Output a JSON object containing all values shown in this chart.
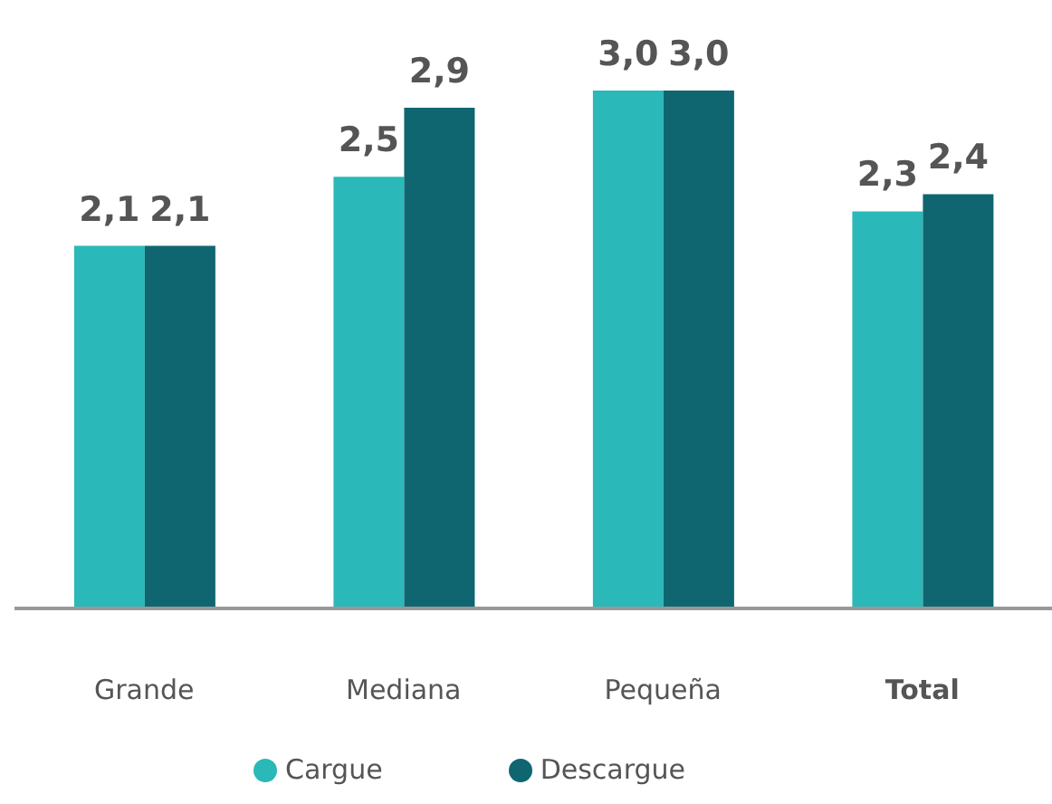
{
  "chart_data": {
    "type": "bar",
    "categories": [
      "Grande",
      "Mediana",
      "Pequeña",
      "Total"
    ],
    "series": [
      {
        "name": "Cargue",
        "color": "#2ab8b8",
        "values": [
          2.1,
          2.5,
          3.0,
          2.3
        ],
        "value_labels": [
          "2,1",
          "2,5",
          "3,0",
          "2,3"
        ]
      },
      {
        "name": "Descargue",
        "color": "#0f6670",
        "values": [
          2.1,
          2.9,
          3.0,
          2.4
        ],
        "value_labels": [
          "2,1",
          "2,9",
          "3,0",
          "2,4"
        ]
      }
    ],
    "tick_labels": "x",
    "legend": "bottom",
    "grid": false
  }
}
